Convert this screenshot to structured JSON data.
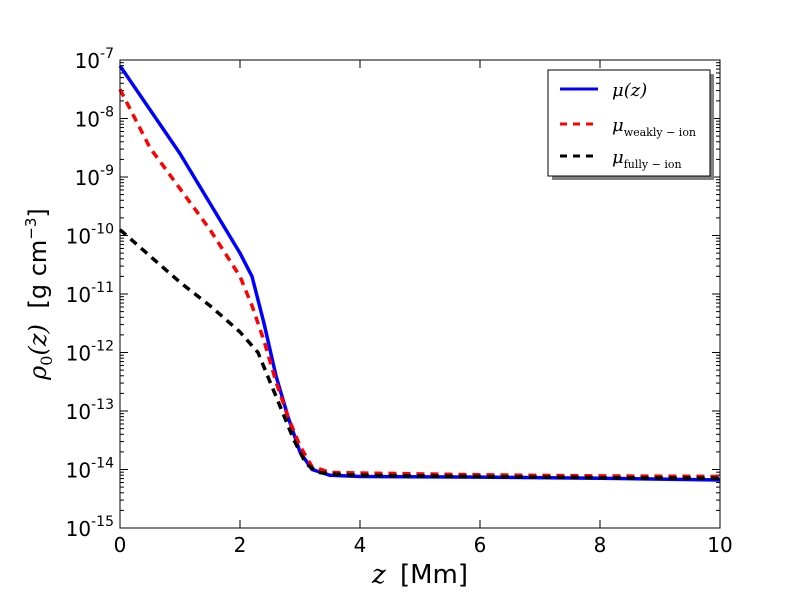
{
  "chart_data": {
    "type": "line",
    "y_scale": "log",
    "xlim": [
      0,
      10
    ],
    "ylim_exponents": [
      -15,
      -7
    ],
    "x_ticks": [
      0,
      2,
      4,
      6,
      8,
      10
    ],
    "y_tick_exponents": [
      -15,
      -14,
      -13,
      -12,
      -11,
      -10,
      -9,
      -8,
      -7
    ],
    "y_tick_base": "10",
    "xlabel": {
      "symbol": "z",
      "unit": "[Mm]"
    },
    "ylabel": {
      "symbol": "ρ",
      "subscript": "0",
      "arg": "(z)",
      "unit": "[g cm",
      "unit_exp": "−3",
      "unit_close": "]"
    },
    "legend_position": "top-right",
    "series": [
      {
        "name": "mu",
        "label": "μ(z)",
        "label_main": "μ(z)",
        "label_sub": "",
        "color": "#0000ff",
        "style": "solid",
        "points": [
          [
            0,
            -7.1
          ],
          [
            1,
            -8.6
          ],
          [
            2,
            -10.3
          ],
          [
            2.2,
            -10.7
          ],
          [
            2.4,
            -11.5
          ],
          [
            2.6,
            -12.4
          ],
          [
            2.8,
            -13.1
          ],
          [
            3.0,
            -13.7
          ],
          [
            3.2,
            -14.0
          ],
          [
            3.5,
            -14.1
          ],
          [
            4,
            -14.12
          ],
          [
            6,
            -14.13
          ],
          [
            8,
            -14.15
          ],
          [
            10,
            -14.18
          ]
        ]
      },
      {
        "name": "mu-weakly-ion",
        "label": "μweakly − ion",
        "label_main": "μ",
        "label_sub": "weakly − ion",
        "color": "#ff0000",
        "style": "dashed",
        "points": [
          [
            0,
            -7.5
          ],
          [
            0.5,
            -8.5
          ],
          [
            1,
            -9.2
          ],
          [
            1.5,
            -9.9
          ],
          [
            2,
            -10.7
          ],
          [
            2.2,
            -11.2
          ],
          [
            2.4,
            -11.8
          ],
          [
            2.6,
            -12.5
          ],
          [
            2.8,
            -13.1
          ],
          [
            3.0,
            -13.6
          ],
          [
            3.2,
            -13.95
          ],
          [
            3.5,
            -14.05
          ],
          [
            4,
            -14.06
          ],
          [
            6,
            -14.09
          ],
          [
            8,
            -14.11
          ],
          [
            10,
            -14.12
          ]
        ]
      },
      {
        "name": "mu-fully-ion",
        "label": "μfully − ion",
        "label_main": "μ",
        "label_sub": "fully − ion",
        "color": "#000000",
        "style": "dashed",
        "points": [
          [
            0,
            -9.9
          ],
          [
            0.5,
            -10.35
          ],
          [
            1,
            -10.8
          ],
          [
            1.5,
            -11.2
          ],
          [
            2,
            -11.65
          ],
          [
            2.3,
            -12.0
          ],
          [
            2.5,
            -12.5
          ],
          [
            2.7,
            -13.0
          ],
          [
            2.9,
            -13.5
          ],
          [
            3.1,
            -13.9
          ],
          [
            3.3,
            -14.05
          ],
          [
            3.6,
            -14.08
          ],
          [
            4,
            -14.1
          ],
          [
            6,
            -14.12
          ],
          [
            8,
            -14.14
          ],
          [
            10,
            -14.15
          ]
        ]
      }
    ]
  }
}
